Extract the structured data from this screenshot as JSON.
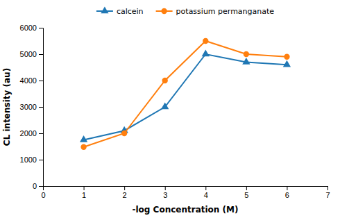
{
  "chart_data": {
    "type": "line",
    "x": [
      1,
      2,
      3,
      4,
      5,
      6
    ],
    "series": [
      {
        "name": "calcein",
        "values": [
          1750,
          2100,
          3000,
          5000,
          4700,
          4600
        ],
        "marker": "triangle"
      },
      {
        "name": "potassium permanganate",
        "values": [
          1480,
          2000,
          4000,
          5500,
          5000,
          4900
        ],
        "marker": "circle"
      }
    ],
    "x_label": "-log Concentration (M)",
    "y_label": "CL intensity (au)",
    "xlim": [
      0,
      7
    ],
    "ylim": [
      0,
      6000
    ],
    "xticks": [
      0,
      1,
      2,
      3,
      4,
      5,
      6,
      7
    ],
    "yticks": [
      0,
      1000,
      2000,
      3000,
      4000,
      5000,
      6000
    ],
    "grid": false,
    "legend": "top"
  }
}
